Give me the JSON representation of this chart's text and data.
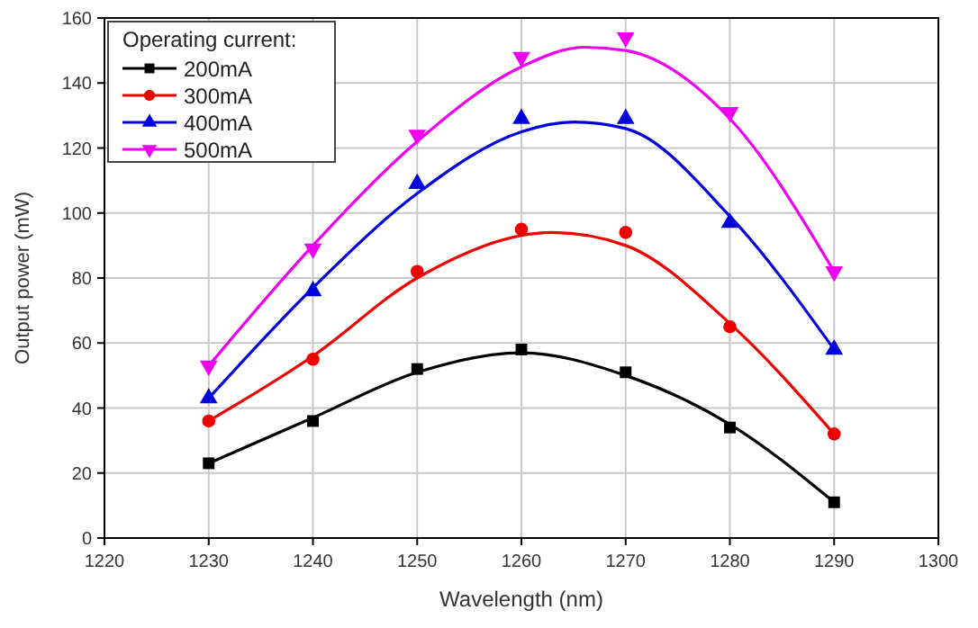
{
  "chart_data": {
    "type": "scatter",
    "xlabel": "Wavelength (nm)",
    "ylabel": "Output power (mW)",
    "legend_title": "Operating current:",
    "legend": "top left",
    "grid": true,
    "xlim": [
      1220,
      1300
    ],
    "xticks": [
      1220,
      1230,
      1240,
      1250,
      1260,
      1270,
      1280,
      1290,
      1300
    ],
    "ylim": [
      0,
      160
    ],
    "yticks": [
      0,
      20,
      40,
      60,
      80,
      100,
      120,
      140,
      160
    ],
    "x": [
      1230,
      1240,
      1250,
      1260,
      1270,
      1280,
      1290
    ],
    "series": [
      {
        "name": "200mA",
        "color": "#000000",
        "marker": "square",
        "values": [
          23,
          36,
          52,
          58,
          51,
          34,
          11
        ]
      },
      {
        "name": "300mA",
        "color": "#ee0000",
        "marker": "circle",
        "values": [
          36,
          55,
          82,
          95,
          94,
          65,
          32
        ]
      },
      {
        "name": "400mA",
        "color": "#0000dd",
        "marker": "triangle",
        "values": [
          43,
          76,
          109,
          129,
          129,
          97,
          58
        ]
      },
      {
        "name": "500mA",
        "color": "#ee00ee",
        "marker": "triangle-down",
        "values": [
          53,
          89,
          124,
          148,
          154,
          131,
          82
        ]
      },
      {
        "type": "line",
        "color": "#000000",
        "x": [
          1230,
          1240,
          1250,
          1260,
          1270,
          1280,
          1290
        ],
        "values": [
          23,
          37,
          51,
          57,
          50,
          35,
          11
        ]
      },
      {
        "type": "line",
        "color": "#ee0000",
        "x": [
          1230,
          1240,
          1250,
          1263,
          1270,
          1280,
          1290
        ],
        "values": [
          36,
          56,
          80,
          94,
          90,
          66,
          32
        ]
      },
      {
        "type": "line",
        "color": "#0000dd",
        "x": [
          1230,
          1240,
          1250,
          1260,
          1265,
          1270,
          1280,
          1290
        ],
        "values": [
          43,
          77,
          106,
          125,
          128,
          126,
          99,
          58
        ]
      },
      {
        "type": "line",
        "color": "#ee00ee",
        "x": [
          1230,
          1240,
          1250,
          1260,
          1266,
          1270,
          1280,
          1290
        ],
        "values": [
          53,
          90,
          122,
          145,
          151,
          150,
          129,
          82
        ]
      }
    ]
  }
}
